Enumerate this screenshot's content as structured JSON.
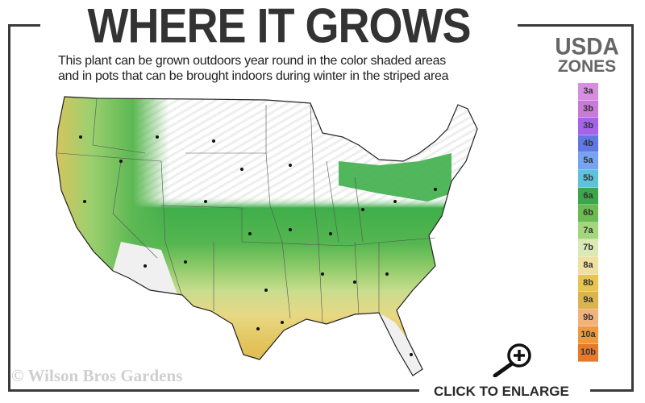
{
  "header": {
    "title": "WHERE IT GROWS",
    "subtitle_line1": "This plant can be grown outdoors year round in the color shaded areas",
    "subtitle_line2": "and in pots that can be brought indoors during winter in the striped area"
  },
  "legend": {
    "title_line1": "USDA",
    "title_line2": "ZONES",
    "zones": [
      {
        "label": "3a",
        "color": "#d88ee0"
      },
      {
        "label": "3b",
        "color": "#c77ad8"
      },
      {
        "label": "3b",
        "color": "#a463e8"
      },
      {
        "label": "4b",
        "color": "#5f78e6"
      },
      {
        "label": "5a",
        "color": "#76a4f2"
      },
      {
        "label": "5b",
        "color": "#5cc3da"
      },
      {
        "label": "6a",
        "color": "#3ca64a"
      },
      {
        "label": "6b",
        "color": "#6cbb52"
      },
      {
        "label": "7a",
        "color": "#a4d67c"
      },
      {
        "label": "7b",
        "color": "#dbe9b4"
      },
      {
        "label": "8a",
        "color": "#efe0a0"
      },
      {
        "label": "8b",
        "color": "#e6c44f"
      },
      {
        "label": "9a",
        "color": "#dbb450"
      },
      {
        "label": "9b",
        "color": "#f2b27c"
      },
      {
        "label": "10a",
        "color": "#ee9a3c"
      },
      {
        "label": "10b",
        "color": "#e57a2c"
      }
    ]
  },
  "map": {
    "region": "United States",
    "shaded_zones": [
      "6a",
      "6b",
      "7a",
      "7b",
      "8a",
      "8b",
      "9a"
    ],
    "striped_zones": [
      "3a",
      "3b",
      "4b",
      "5a",
      "5b"
    ]
  },
  "footer": {
    "copyright": "© Wilson Bros Gardens",
    "enlarge_label": "CLICK TO ENLARGE",
    "enlarge_icon": "zoom-in-icon"
  }
}
